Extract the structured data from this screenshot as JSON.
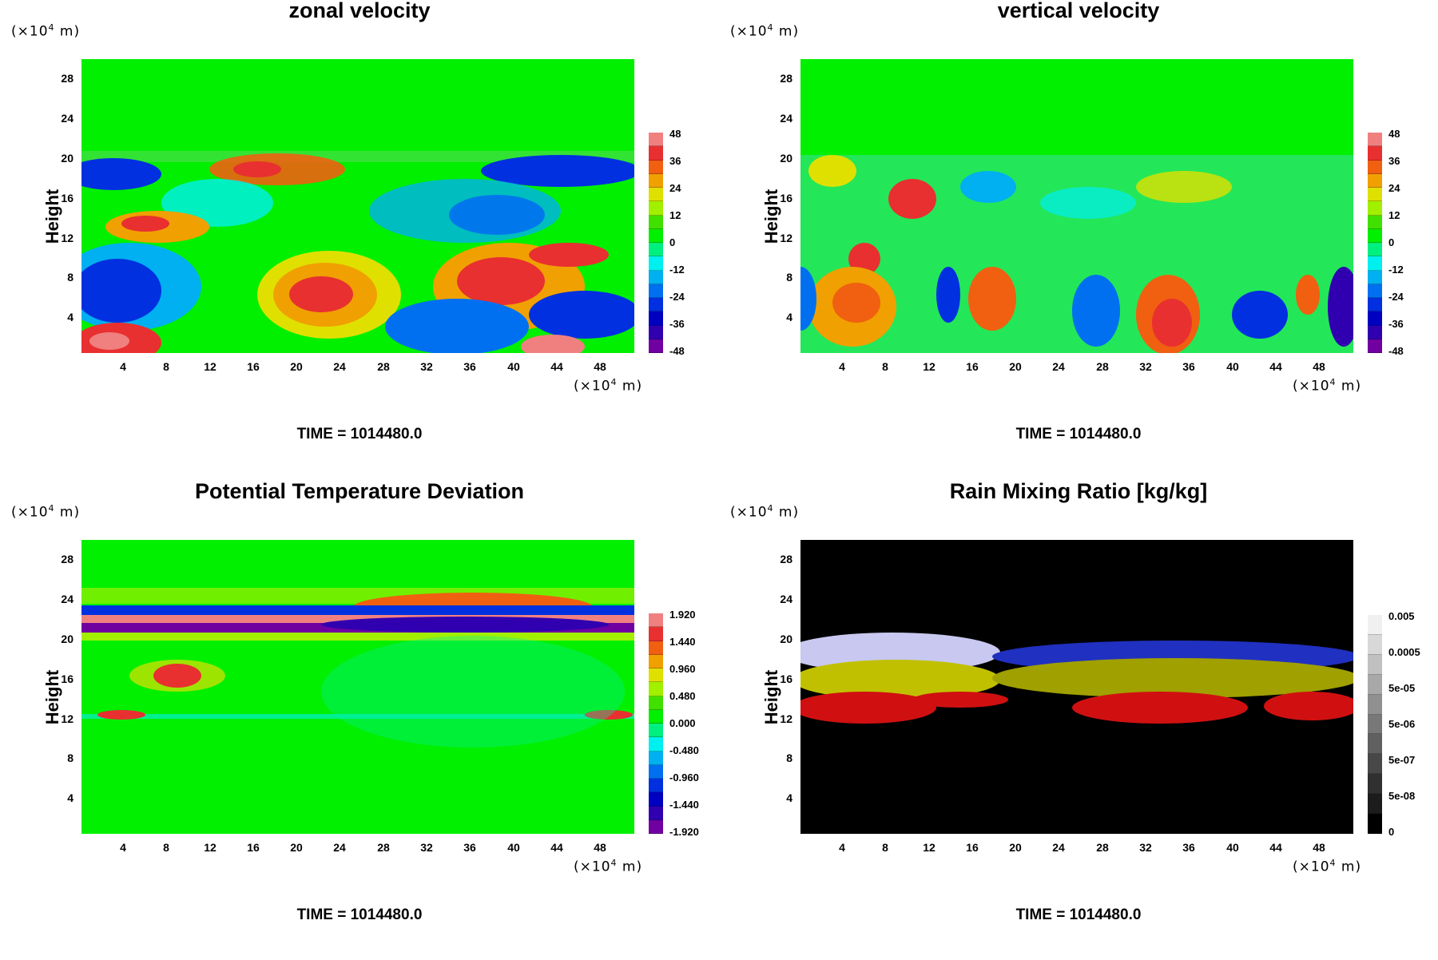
{
  "scale_note": "(×10",
  "scale_exp": "4",
  "scale_unit": " m)",
  "ylabel": "Height",
  "y_ticks": [
    "28",
    "24",
    "20",
    "16",
    "12",
    "8",
    "4"
  ],
  "x_ticks": [
    "4",
    "8",
    "12",
    "16",
    "20",
    "24",
    "28",
    "32",
    "36",
    "40",
    "44",
    "48"
  ],
  "time_label": "TIME = 1014480.0",
  "panels": [
    {
      "title": "zonal velocity",
      "colorbar_labels": [
        "48",
        "36",
        "24",
        "12",
        "0",
        "-12",
        "-24",
        "-36",
        "-48"
      ],
      "colorbar_scheme": "rainbow"
    },
    {
      "title": "vertical velocity",
      "colorbar_labels": [
        "48",
        "36",
        "24",
        "12",
        "0",
        "-12",
        "-24",
        "-36",
        "-48"
      ],
      "colorbar_scheme": "rainbow"
    },
    {
      "title": "Potential Temperature Deviation",
      "colorbar_labels": [
        "1.920",
        "1.440",
        "0.960",
        "0.480",
        "0.000",
        "-0.480",
        "-0.960",
        "-1.440",
        "-1.920"
      ],
      "colorbar_scheme": "rainbow"
    },
    {
      "title": "Rain Mixing Ratio [kg/kg]",
      "colorbar_labels": [
        "0.005",
        "0.0005",
        "5e-05",
        "5e-06",
        "5e-07",
        "5e-08",
        "0"
      ],
      "colorbar_scheme": "gray"
    }
  ],
  "colors": {
    "rainbow": [
      "#f08080",
      "#e83030",
      "#f06010",
      "#f0a000",
      "#e0e000",
      "#a0f000",
      "#40e000",
      "#00f000",
      "#00f080",
      "#00f0f0",
      "#00b0f0",
      "#0070f0",
      "#0030e0",
      "#0000c0",
      "#3000b0",
      "#7000a0"
    ],
    "gray": [
      "#f0f0f0",
      "#d8d8d8",
      "#c0c0c0",
      "#a8a8a8",
      "#909090",
      "#787878",
      "#606060",
      "#484848",
      "#303030",
      "#1c1c1c",
      "#000000"
    ],
    "green_bg": "#00f000",
    "black_bg": "#000000"
  },
  "chart_data": [
    {
      "type": "heatmap",
      "title": "zonal velocity",
      "ylabel": "Height",
      "x_ticks": [
        4,
        8,
        12,
        16,
        20,
        24,
        28,
        32,
        36,
        40,
        44,
        48
      ],
      "y_ticks": [
        4,
        8,
        12,
        16,
        20,
        24,
        28
      ],
      "x_unit": "×10^4 m",
      "y_unit": "×10^4 m",
      "colorbar": [
        48,
        36,
        24,
        12,
        0,
        -12,
        -24,
        -36,
        -48
      ],
      "annotation": "TIME = 1014480.0"
    },
    {
      "type": "heatmap",
      "title": "vertical velocity",
      "ylabel": "Height",
      "x_ticks": [
        4,
        8,
        12,
        16,
        20,
        24,
        28,
        32,
        36,
        40,
        44,
        48
      ],
      "y_ticks": [
        4,
        8,
        12,
        16,
        20,
        24,
        28
      ],
      "x_unit": "×10^4 m",
      "y_unit": "×10^4 m",
      "colorbar": [
        48,
        36,
        24,
        12,
        0,
        -12,
        -24,
        -36,
        -48
      ],
      "annotation": "TIME = 1014480.0"
    },
    {
      "type": "heatmap",
      "title": "Potential Temperature Deviation",
      "ylabel": "Height",
      "x_ticks": [
        4,
        8,
        12,
        16,
        20,
        24,
        28,
        32,
        36,
        40,
        44,
        48
      ],
      "y_ticks": [
        4,
        8,
        12,
        16,
        20,
        24,
        28
      ],
      "x_unit": "×10^4 m",
      "y_unit": "×10^4 m",
      "colorbar": [
        1.92,
        1.44,
        0.96,
        0.48,
        0.0,
        -0.48,
        -0.96,
        -1.44,
        -1.92
      ],
      "annotation": "TIME = 1014480.0"
    },
    {
      "type": "heatmap",
      "title": "Rain Mixing Ratio [kg/kg]",
      "ylabel": "Height",
      "x_ticks": [
        4,
        8,
        12,
        16,
        20,
        24,
        28,
        32,
        36,
        40,
        44,
        48
      ],
      "y_ticks": [
        4,
        8,
        12,
        16,
        20,
        24,
        28
      ],
      "x_unit": "×10^4 m",
      "y_unit": "×10^4 m",
      "colorbar": [
        "0.005",
        "0.0005",
        "5e-05",
        "5e-06",
        "5e-07",
        "5e-08",
        "0"
      ],
      "annotation": "TIME = 1014480.0"
    }
  ]
}
